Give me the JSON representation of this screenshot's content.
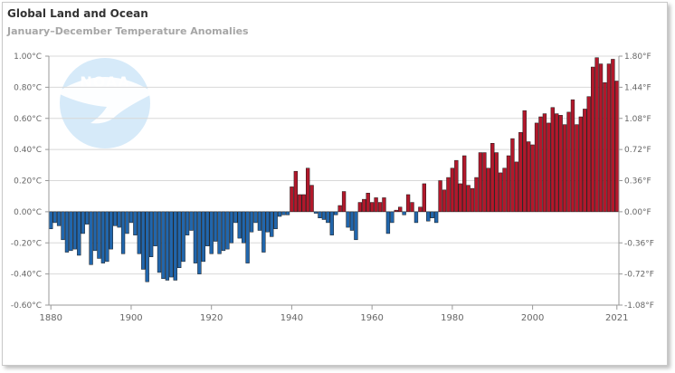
{
  "title": "Global Land and Ocean",
  "subtitle": "January–December Temperature Anomalies",
  "colors": {
    "positive": "#b2182b",
    "negative": "#2166ac",
    "grid": "#d8d8d8",
    "logo": "#8fc6ef"
  },
  "logo_text": "NOAA",
  "chart_data": {
    "type": "bar",
    "title": "Global Land and Ocean",
    "subtitle": "January–December Temperature Anomalies",
    "x": [
      1880,
      1881,
      1882,
      1883,
      1884,
      1885,
      1886,
      1887,
      1888,
      1889,
      1890,
      1891,
      1892,
      1893,
      1894,
      1895,
      1896,
      1897,
      1898,
      1899,
      1900,
      1901,
      1902,
      1903,
      1904,
      1905,
      1906,
      1907,
      1908,
      1909,
      1910,
      1911,
      1912,
      1913,
      1914,
      1915,
      1916,
      1917,
      1918,
      1919,
      1920,
      1921,
      1922,
      1923,
      1924,
      1925,
      1926,
      1927,
      1928,
      1929,
      1930,
      1931,
      1932,
      1933,
      1934,
      1935,
      1936,
      1937,
      1938,
      1939,
      1940,
      1941,
      1942,
      1943,
      1944,
      1945,
      1946,
      1947,
      1948,
      1949,
      1950,
      1951,
      1952,
      1953,
      1954,
      1955,
      1956,
      1957,
      1958,
      1959,
      1960,
      1961,
      1962,
      1963,
      1964,
      1965,
      1966,
      1967,
      1968,
      1969,
      1970,
      1971,
      1972,
      1973,
      1974,
      1975,
      1976,
      1977,
      1978,
      1979,
      1980,
      1981,
      1982,
      1983,
      1984,
      1985,
      1986,
      1987,
      1988,
      1989,
      1990,
      1991,
      1992,
      1993,
      1994,
      1995,
      1996,
      1997,
      1998,
      1999,
      2000,
      2001,
      2002,
      2003,
      2004,
      2005,
      2006,
      2007,
      2008,
      2009,
      2010,
      2011,
      2012,
      2013,
      2014,
      2015,
      2016,
      2017,
      2018,
      2019,
      2020,
      2021
    ],
    "values": [
      -0.11,
      -0.07,
      -0.09,
      -0.18,
      -0.26,
      -0.25,
      -0.24,
      -0.28,
      -0.14,
      -0.08,
      -0.34,
      -0.25,
      -0.3,
      -0.33,
      -0.32,
      -0.24,
      -0.09,
      -0.1,
      -0.27,
      -0.14,
      -0.07,
      -0.15,
      -0.27,
      -0.37,
      -0.45,
      -0.29,
      -0.22,
      -0.39,
      -0.43,
      -0.44,
      -0.42,
      -0.44,
      -0.36,
      -0.32,
      -0.15,
      -0.12,
      -0.33,
      -0.4,
      -0.32,
      -0.22,
      -0.27,
      -0.19,
      -0.27,
      -0.25,
      -0.24,
      -0.2,
      -0.07,
      -0.17,
      -0.2,
      -0.33,
      -0.13,
      -0.07,
      -0.12,
      -0.26,
      -0.13,
      -0.16,
      -0.11,
      -0.03,
      -0.02,
      -0.02,
      0.16,
      0.26,
      0.11,
      0.11,
      0.28,
      0.17,
      -0.01,
      -0.04,
      -0.05,
      -0.07,
      -0.15,
      -0.02,
      0.04,
      0.13,
      -0.1,
      -0.12,
      -0.18,
      0.06,
      0.08,
      0.12,
      0.06,
      0.09,
      0.06,
      0.09,
      -0.14,
      -0.07,
      0.01,
      0.03,
      -0.02,
      0.11,
      0.06,
      -0.07,
      0.03,
      0.18,
      -0.06,
      -0.04,
      -0.07,
      0.2,
      0.14,
      0.22,
      0.28,
      0.33,
      0.18,
      0.36,
      0.17,
      0.15,
      0.22,
      0.38,
      0.38,
      0.28,
      0.44,
      0.38,
      0.25,
      0.28,
      0.36,
      0.47,
      0.32,
      0.51,
      0.65,
      0.45,
      0.43,
      0.57,
      0.61,
      0.63,
      0.57,
      0.67,
      0.63,
      0.62,
      0.56,
      0.64,
      0.72,
      0.56,
      0.61,
      0.66,
      0.74,
      0.93,
      0.99,
      0.95,
      0.83,
      0.95,
      0.98,
      0.84
    ],
    "ylim": [
      -0.6,
      1.0
    ],
    "y_ticks_left": [
      "-0.60°C",
      "-0.40°C",
      "-0.20°C",
      "0.00°C",
      "0.20°C",
      "0.40°C",
      "0.60°C",
      "0.80°C",
      "1.00°C"
    ],
    "y_ticks_right": [
      "-1.08°F",
      "-0.72°F",
      "-0.36°F",
      "0.00°F",
      "0.36°F",
      "0.72°F",
      "1.08°F",
      "1.44°F",
      "1.80°F"
    ],
    "x_ticks": [
      "1880",
      "1900",
      "1920",
      "1940",
      "1960",
      "1980",
      "2000",
      "2021"
    ],
    "grid": true
  }
}
